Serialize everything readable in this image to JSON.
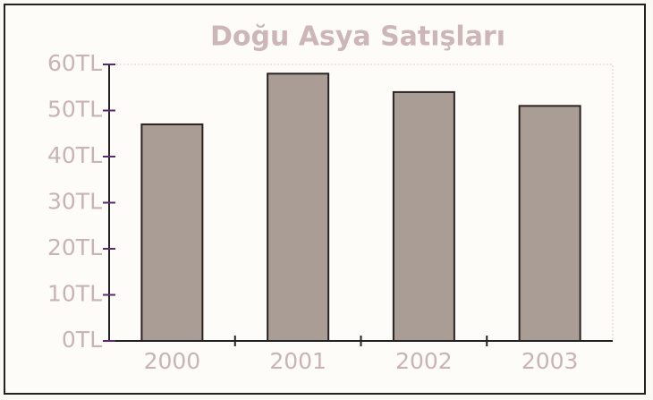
{
  "chart_data": {
    "type": "bar",
    "title": "Doğu Asya Satışları",
    "categories": [
      "2000",
      "2001",
      "2002",
      "2003"
    ],
    "values": [
      47,
      58,
      54,
      51
    ],
    "color": "#a99d96",
    "ylim": [
      0,
      60
    ],
    "yticks": [
      {
        "value": 0,
        "label": "0TL"
      },
      {
        "value": 10,
        "label": "10TL"
      },
      {
        "value": 20,
        "label": "20TL"
      },
      {
        "value": 30,
        "label": "30TL"
      },
      {
        "value": 40,
        "label": "40TL"
      },
      {
        "value": 50,
        "label": "50TL"
      },
      {
        "value": 60,
        "label": "60TL"
      }
    ]
  }
}
